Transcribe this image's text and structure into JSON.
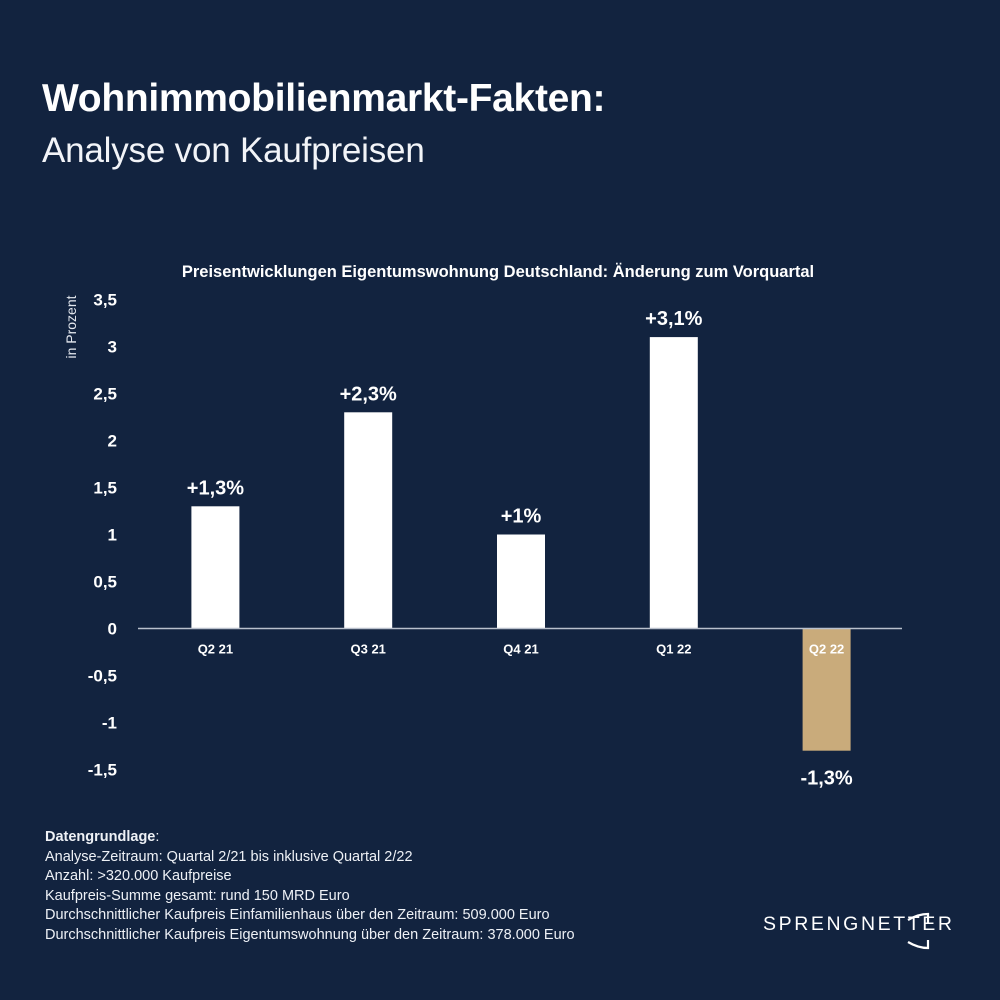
{
  "header": {
    "title": "Wohnimmobilienmarkt-Fakten:",
    "subtitle": "Analyse von Kaufpreisen"
  },
  "colors": {
    "background": "#12233f",
    "bar_positive": "#ffffff",
    "bar_highlight": "#c9ab7b",
    "axis_line": "#b9c0cc"
  },
  "chart_data": {
    "type": "bar",
    "title": "Preisentwicklungen Eigentumswohnung Deutschland: Änderung zum Vorquartal",
    "xlabel": "",
    "ylabel": "in Prozent",
    "ylim": [
      -1.5,
      3.5
    ],
    "yticks": [
      3.5,
      3,
      2.5,
      2,
      1.5,
      1,
      0.5,
      0,
      -0.5,
      -1,
      -1.5
    ],
    "ytick_labels": [
      "3,5",
      "3",
      "2,5",
      "2",
      "1,5",
      "1",
      "0,5",
      "0",
      "-0,5",
      "-1",
      "-1,5"
    ],
    "grid": false,
    "categories": [
      "Q2 21",
      "Q3 21",
      "Q4 21",
      "Q1 22",
      "Q2 22"
    ],
    "values": [
      1.3,
      2.3,
      1.0,
      3.1,
      -1.3
    ],
    "data_labels": [
      "+1,3%",
      "+2,3%",
      "+1%",
      "+3,1%",
      "-1,3%"
    ],
    "highlight_index": 4
  },
  "footer": {
    "heading": "Datengrundlage",
    "heading_suffix": ":",
    "lines": [
      "Analyse-Zeitraum: Quartal 2/21 bis inklusive Quartal 2/22",
      "Anzahl: >320.000 Kaufpreise",
      "Kaufpreis-Summe gesamt: rund 150 MRD Euro",
      "Durchschnittlicher Kaufpreis Einfamilienhaus über den Zeitraum: 509.000 Euro",
      "Durchschnittlicher Kaufpreis Eigentumswohnung über den Zeitraum: 378.000 Euro"
    ]
  },
  "brand": {
    "logo_text": "SPRENGNETTER"
  }
}
